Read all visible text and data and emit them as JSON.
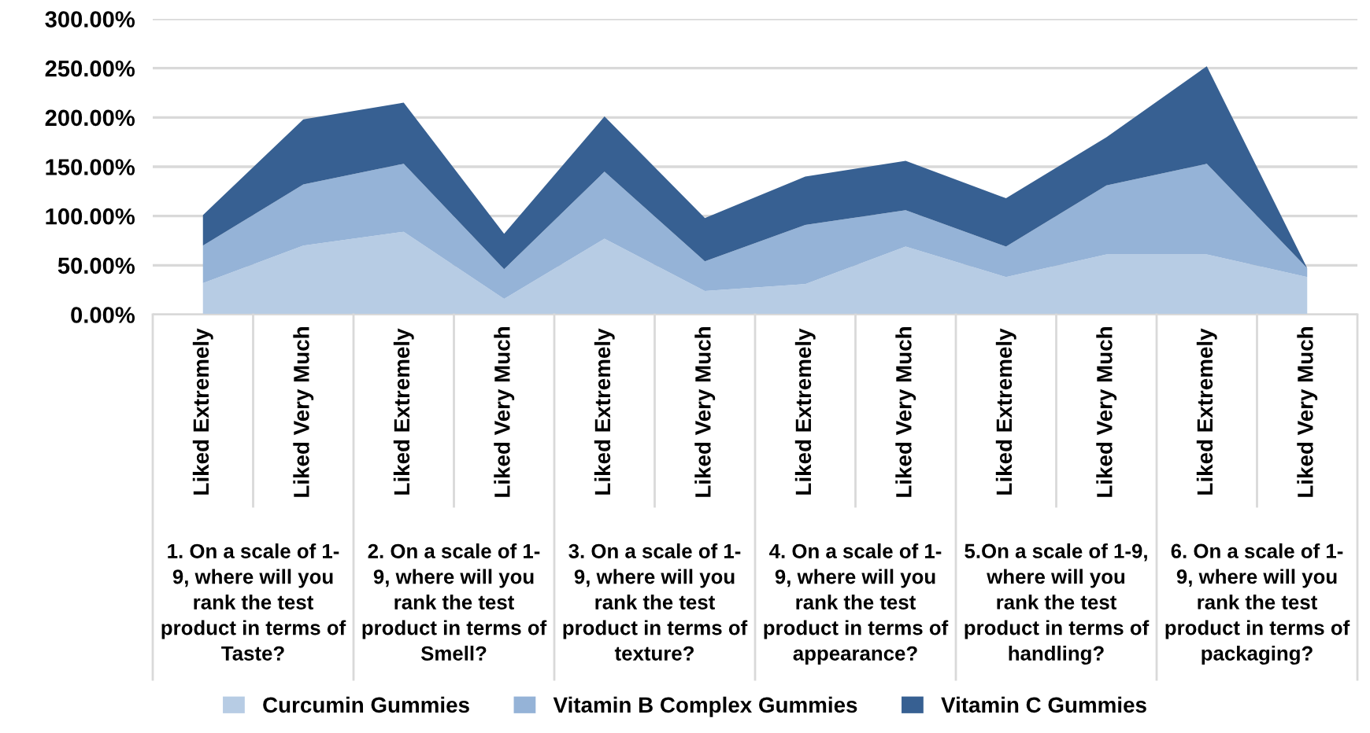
{
  "chart_data": {
    "type": "area",
    "stacked": true,
    "categories": [
      "Liked Extremely",
      "Liked Very Much",
      "Liked Extremely",
      "Liked Very Much",
      "Liked Extremely",
      "Liked Very Much",
      "Liked Extremely",
      "Liked Very Much",
      "Liked Extremely",
      "Liked Very Much",
      "Liked Extremely",
      "Liked Very Much"
    ],
    "series": [
      {
        "name": "Curcumin Gummies",
        "color": "#b7cce4",
        "values": [
          32,
          70,
          84,
          16,
          77,
          24,
          31,
          69,
          38,
          61,
          61,
          38
        ]
      },
      {
        "name": "Vitamin B Complex Gummies",
        "color": "#95b3d7",
        "values": [
          38,
          62,
          69,
          30,
          68,
          30,
          60,
          37,
          31,
          70,
          92,
          9
        ]
      },
      {
        "name": "Vitamin C Gummies",
        "color": "#376092",
        "values": [
          31,
          66,
          62,
          36,
          56,
          44,
          49,
          50,
          49,
          49,
          99,
          0
        ]
      }
    ],
    "ylim": [
      0,
      300
    ],
    "yticks": [
      {
        "value": 0,
        "label": "0.00%"
      },
      {
        "value": 50,
        "label": "50.00%"
      },
      {
        "value": 100,
        "label": "100.00%"
      },
      {
        "value": 150,
        "label": "150.00%"
      },
      {
        "value": 200,
        "label": "200.00%"
      },
      {
        "value": 250,
        "label": "250.00%"
      },
      {
        "value": 300,
        "label": "300.00%"
      }
    ],
    "grid": "y",
    "legend": "bottom",
    "annotations": [
      "1. On a scale of 1-\n9, where will you\nrank the test\nproduct in terms of\nTaste?",
      "2. On a scale of 1-\n9, where will you\nrank the test\nproduct in terms of\nSmell?",
      "3. On a scale of 1-\n9, where will you\nrank the test\nproduct in terms of\ntexture?",
      "4. On a scale of 1-\n9, where will you\nrank the test\nproduct in terms of\nappearance?",
      "5.On a scale of 1-9,\nwhere will you\nrank the test\nproduct in terms of\nhandling?",
      "6. On a scale of 1-\n9, where will you\nrank the test\nproduct in terms of\npackaging?"
    ]
  }
}
